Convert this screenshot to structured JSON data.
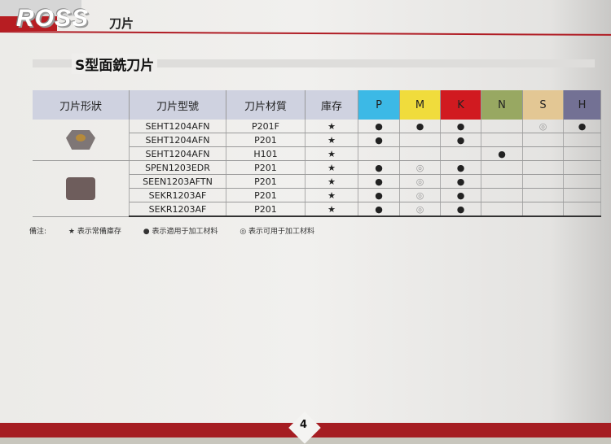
{
  "header": {
    "logo": "ROSS",
    "logo_sub": "刀片",
    "title": "S型面銑刀片"
  },
  "table": {
    "headers": [
      "刀片形狀",
      "刀片型號",
      "刀片材質",
      "庫存",
      "P",
      "M",
      "K",
      "N",
      "S",
      "H"
    ],
    "header_colors": [
      "#cfd2e0",
      "#cfd2e0",
      "#cfd2e0",
      "#cfd2e0",
      "#3cb9e6",
      "#f0dc3c",
      "#d11a20",
      "#98a862",
      "#e3c794",
      "#737194"
    ],
    "rows": [
      {
        "model": "SEHT1204AFN",
        "material": "P201F",
        "stock": "★",
        "marks": [
          "●",
          "●",
          "●",
          "",
          "◎",
          "●"
        ]
      },
      {
        "model": "SEHT1204AFN",
        "material": "P201",
        "stock": "★",
        "marks": [
          "●",
          "",
          "●",
          "",
          "",
          ""
        ]
      },
      {
        "model": "SEHT1204AFN",
        "material": "H101",
        "stock": "★",
        "marks": [
          "",
          "",
          "",
          "●",
          "",
          ""
        ]
      },
      {
        "model": "SPEN1203EDR",
        "material": "P201",
        "stock": "★",
        "marks": [
          "●",
          "◎",
          "●",
          "",
          "",
          ""
        ]
      },
      {
        "model": "SEEN1203AFTN",
        "material": "P201",
        "stock": "★",
        "marks": [
          "●",
          "◎",
          "●",
          "",
          "",
          ""
        ]
      },
      {
        "model": "SEKR1203AF",
        "material": "P201",
        "stock": "★",
        "marks": [
          "●",
          "◎",
          "●",
          "",
          "",
          ""
        ]
      },
      {
        "model": "SEKR1203AF",
        "material": "P201",
        "stock": "★",
        "marks": [
          "●",
          "◎",
          "●",
          "",
          "",
          ""
        ]
      }
    ]
  },
  "notes": {
    "label": "備注:",
    "star": "★ 表示常備庫存",
    "dot": "● 表示適用于加工材料",
    "ring": "◎ 表示可用于加工材料"
  },
  "footer": {
    "page": "4"
  }
}
